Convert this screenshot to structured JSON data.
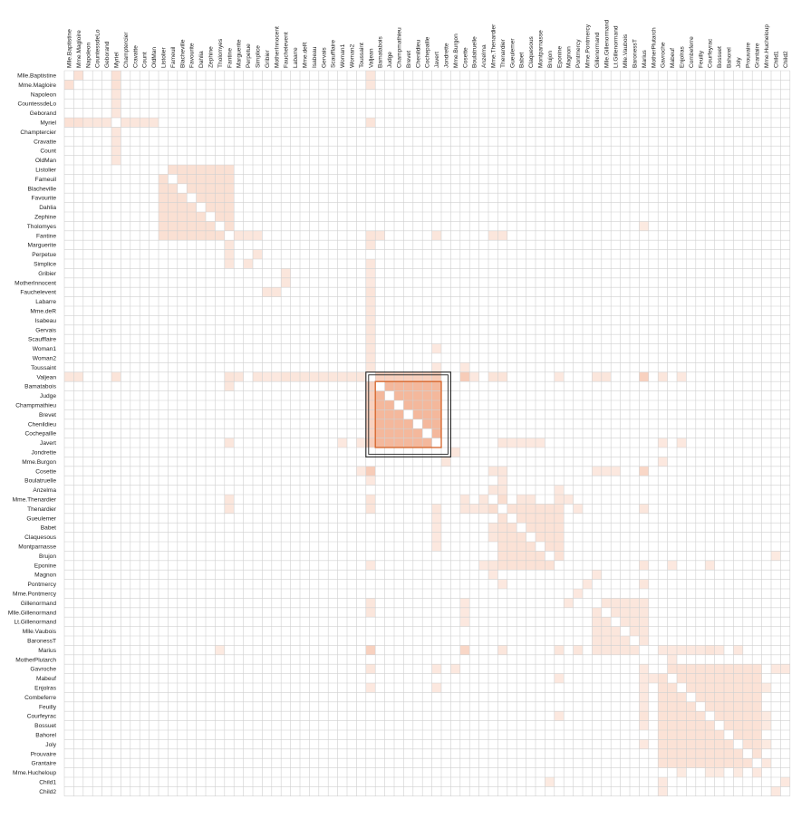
{
  "chart_data": {
    "type": "heatmap",
    "title": "",
    "nodes": [
      "Mlle.Baptistine",
      "Mme.Magloire",
      "Napoleon",
      "CountessdeLo",
      "Geborand",
      "Myriel",
      "Champtercier",
      "Cravatte",
      "Count",
      "OldMan",
      "Listolier",
      "Fameuil",
      "Blacheville",
      "Favourite",
      "Dahlia",
      "Zephine",
      "Tholomyes",
      "Fantine",
      "Marguerite",
      "Perpetue",
      "Simplice",
      "Gribier",
      "MotherInnocent",
      "Fauchelevent",
      "Labarre",
      "Mme.deR",
      "Isabeau",
      "Gervais",
      "Scaufflaire",
      "Woman1",
      "Woman2",
      "Toussaint",
      "Valjean",
      "Bamatabois",
      "Judge",
      "Champmathieu",
      "Brevet",
      "Chenildieu",
      "Cochepaille",
      "Javert",
      "Jondrette",
      "Mme.Burgon",
      "Cosette",
      "Boulatruelle",
      "Anzelma",
      "Mme.Thenardier",
      "Thenardier",
      "Gueulemer",
      "Babet",
      "Claquesous",
      "Montparnasse",
      "Brujon",
      "Eponine",
      "Magnon",
      "Pontmercy",
      "Mme.Pontmercy",
      "Gillenormand",
      "Mlle.Gillenormand",
      "Lt.Gillenormand",
      "Mlle.Vaubois",
      "BaronessT",
      "Marius",
      "MotherPlutarch",
      "Gavroche",
      "Mabeuf",
      "Enjolras",
      "Combeferre",
      "Feuilly",
      "Courfeyrac",
      "Bossuet",
      "Bahorel",
      "Joly",
      "Prouvaire",
      "Grantaire",
      "Mme.Hucheloup",
      "Child1",
      "Child2"
    ],
    "color_low": "#fdf0ea",
    "color_high": "#f4b89c",
    "grid_color": "#d0d0d0",
    "highlight_color": "#d4642a",
    "selection_color": "#222222",
    "highlight_group": [
      "Bamatabois",
      "Judge",
      "Champmathieu",
      "Brevet",
      "Chenildieu",
      "Cochepaille",
      "Javert"
    ],
    "selection_group": [
      "Valjean",
      "Bamatabois",
      "Judge",
      "Champmathieu",
      "Brevet",
      "Chenildieu",
      "Cochepaille",
      "Javert",
      "Jondrette"
    ],
    "cliques": [
      {
        "members": [
          "Bamatabois",
          "Judge",
          "Champmathieu",
          "Brevet",
          "Chenildieu",
          "Cochepaille",
          "Javert"
        ],
        "value": 0.55
      },
      {
        "members": [
          "Listolier",
          "Fameuil",
          "Blacheville",
          "Favourite",
          "Dahlia",
          "Zephine",
          "Tholomyes",
          "Fantine"
        ],
        "value": 0.16
      },
      {
        "members": [
          "Thenardier",
          "Gueulemer",
          "Babet",
          "Claquesous",
          "Montparnasse",
          "Brujon",
          "Eponine"
        ],
        "value": 0.14
      },
      {
        "members": [
          "Gavroche",
          "Mabeuf",
          "Enjolras",
          "Combeferre",
          "Feuilly",
          "Courfeyrac",
          "Bossuet",
          "Bahorel",
          "Joly",
          "Prouvaire",
          "Grantaire"
        ],
        "value": 0.14
      },
      {
        "members": [
          "Gillenormand",
          "Mlle.Gillenormand",
          "Lt.Gillenormand",
          "Mlle.Vaubois",
          "BaronessT",
          "Marius"
        ],
        "value": 0.1
      }
    ],
    "links": [
      [
        "Mlle.Baptistine",
        "Myriel",
        0.15
      ],
      [
        "Mme.Magloire",
        "Myriel",
        0.15
      ],
      [
        "Mlle.Baptistine",
        "Mme.Magloire",
        0.15
      ],
      [
        "Napoleon",
        "Myriel",
        0.1
      ],
      [
        "CountessdeLo",
        "Myriel",
        0.1
      ],
      [
        "Geborand",
        "Myriel",
        0.1
      ],
      [
        "Champtercier",
        "Myriel",
        0.1
      ],
      [
        "Cravatte",
        "Myriel",
        0.1
      ],
      [
        "Count",
        "Myriel",
        0.1
      ],
      [
        "OldMan",
        "Myriel",
        0.1
      ],
      [
        "Valjean",
        "Myriel",
        0.12
      ],
      [
        "Valjean",
        "Mlle.Baptistine",
        0.1
      ],
      [
        "Valjean",
        "Mme.Magloire",
        0.1
      ],
      [
        "Valjean",
        "Fantine",
        0.12
      ],
      [
        "Valjean",
        "Marguerite",
        0.1
      ],
      [
        "Valjean",
        "Fauchelevent",
        0.12
      ],
      [
        "Valjean",
        "Labarre",
        0.1
      ],
      [
        "Valjean",
        "Mme.deR",
        0.1
      ],
      [
        "Valjean",
        "Isabeau",
        0.1
      ],
      [
        "Valjean",
        "Gervais",
        0.1
      ],
      [
        "Valjean",
        "Scaufflaire",
        0.1
      ],
      [
        "Valjean",
        "Woman1",
        0.1
      ],
      [
        "Valjean",
        "Woman2",
        0.1
      ],
      [
        "Valjean",
        "Toussaint",
        0.1
      ],
      [
        "Valjean",
        "Simplice",
        0.1
      ],
      [
        "Valjean",
        "Gribier",
        0.08
      ],
      [
        "Valjean",
        "MotherInnocent",
        0.08
      ],
      [
        "Valjean",
        "Bamatabois",
        0.3
      ],
      [
        "Valjean",
        "Judge",
        0.3
      ],
      [
        "Valjean",
        "Champmathieu",
        0.3
      ],
      [
        "Valjean",
        "Brevet",
        0.3
      ],
      [
        "Valjean",
        "Chenildieu",
        0.3
      ],
      [
        "Valjean",
        "Cochepaille",
        0.3
      ],
      [
        "Valjean",
        "Javert",
        0.35
      ],
      [
        "Valjean",
        "Cosette",
        0.35
      ],
      [
        "Valjean",
        "Thenardier",
        0.12
      ],
      [
        "Valjean",
        "Mme.Thenardier",
        0.12
      ],
      [
        "Valjean",
        "Marius",
        0.3
      ],
      [
        "Valjean",
        "Gavroche",
        0.1
      ],
      [
        "Valjean",
        "Gillenormand",
        0.1
      ],
      [
        "Valjean",
        "Mlle.Gillenormand",
        0.1
      ],
      [
        "Valjean",
        "Enjolras",
        0.08
      ],
      [
        "Valjean",
        "Boulatruelle",
        0.08
      ],
      [
        "Valjean",
        "Eponine",
        0.08
      ],
      [
        "Fantine",
        "Marguerite",
        0.1
      ],
      [
        "Fantine",
        "Perpetue",
        0.1
      ],
      [
        "Fantine",
        "Simplice",
        0.1
      ],
      [
        "Fantine",
        "Thenardier",
        0.1
      ],
      [
        "Fantine",
        "Mme.Thenardier",
        0.1
      ],
      [
        "Fantine",
        "Bamatabois",
        0.1
      ],
      [
        "Fantine",
        "Javert",
        0.1
      ],
      [
        "Simplice",
        "Perpetue",
        0.1
      ],
      [
        "Fauchelevent",
        "MotherInnocent",
        0.1
      ],
      [
        "Fauchelevent",
        "Gribier",
        0.1
      ],
      [
        "Javert",
        "Thenardier",
        0.1
      ],
      [
        "Javert",
        "Gueulemer",
        0.08
      ],
      [
        "Javert",
        "Babet",
        0.08
      ],
      [
        "Javert",
        "Claquesous",
        0.08
      ],
      [
        "Javert",
        "Montparnasse",
        0.08
      ],
      [
        "Javert",
        "Enjolras",
        0.08
      ],
      [
        "Javert",
        "Gavroche",
        0.08
      ],
      [
        "Javert",
        "Toussaint",
        0.08
      ],
      [
        "Javert",
        "Woman1",
        0.08
      ],
      [
        "Jondrette",
        "Mme.Burgon",
        0.1
      ],
      [
        "Gavroche",
        "Mme.Burgon",
        0.08
      ],
      [
        "Cosette",
        "Marius",
        0.25
      ],
      [
        "Cosette",
        "Thenardier",
        0.1
      ],
      [
        "Cosette",
        "Mme.Thenardier",
        0.1
      ],
      [
        "Cosette",
        "Gillenormand",
        0.08
      ],
      [
        "Cosette",
        "Mlle.Gillenormand",
        0.08
      ],
      [
        "Cosette",
        "Lt.Gillenormand",
        0.08
      ],
      [
        "Cosette",
        "Toussaint",
        0.08
      ],
      [
        "Anzelma",
        "Thenardier",
        0.1
      ],
      [
        "Anzelma",
        "Mme.Thenardier",
        0.1
      ],
      [
        "Anzelma",
        "Eponine",
        0.08
      ],
      [
        "Mme.Thenardier",
        "Thenardier",
        0.18
      ],
      [
        "Mme.Thenardier",
        "Babet",
        0.1
      ],
      [
        "Mme.Thenardier",
        "Claquesous",
        0.1
      ],
      [
        "Mme.Thenardier",
        "Eponine",
        0.1
      ],
      [
        "Thenardier",
        "Pontmercy",
        0.08
      ],
      [
        "Thenardier",
        "Marius",
        0.1
      ],
      [
        "Thenardier",
        "Boulatruelle",
        0.08
      ],
      [
        "Magnon",
        "Mme.Thenardier",
        0.08
      ],
      [
        "Magnon",
        "Gillenormand",
        0.08
      ],
      [
        "Pontmercy",
        "Marius",
        0.1
      ],
      [
        "Mme.Pontmercy",
        "Pontmercy",
        0.08
      ],
      [
        "Marius",
        "Eponine",
        0.1
      ],
      [
        "Marius",
        "Gavroche",
        0.08
      ],
      [
        "Marius",
        "Enjolras",
        0.08
      ],
      [
        "Marius",
        "Combeferre",
        0.08
      ],
      [
        "Marius",
        "Feuilly",
        0.08
      ],
      [
        "Marius",
        "Courfeyrac",
        0.12
      ],
      [
        "Marius",
        "Bossuet",
        0.08
      ],
      [
        "Marius",
        "Joly",
        0.08
      ],
      [
        "Marius",
        "Mabeuf",
        0.08
      ],
      [
        "Marius",
        "Tholomyes",
        0.06
      ],
      [
        "Mabeuf",
        "Eponine",
        0.08
      ],
      [
        "Mabeuf",
        "MotherPlutarch",
        0.08
      ],
      [
        "Courfeyrac",
        "Eponine",
        0.08
      ],
      [
        "Brujon",
        "Child1",
        0.06
      ],
      [
        "Gavroche",
        "Child1",
        0.08
      ],
      [
        "Gavroche",
        "Child2",
        0.08
      ],
      [
        "Child1",
        "Child2",
        0.08
      ],
      [
        "Mme.Hucheloup",
        "Grantaire",
        0.08
      ],
      [
        "Mme.Hucheloup",
        "Joly",
        0.06
      ],
      [
        "Mme.Hucheloup",
        "Bossuet",
        0.06
      ],
      [
        "Mme.Hucheloup",
        "Enjolras",
        0.06
      ],
      [
        "Mme.Hucheloup",
        "Courfeyrac",
        0.06
      ]
    ]
  }
}
